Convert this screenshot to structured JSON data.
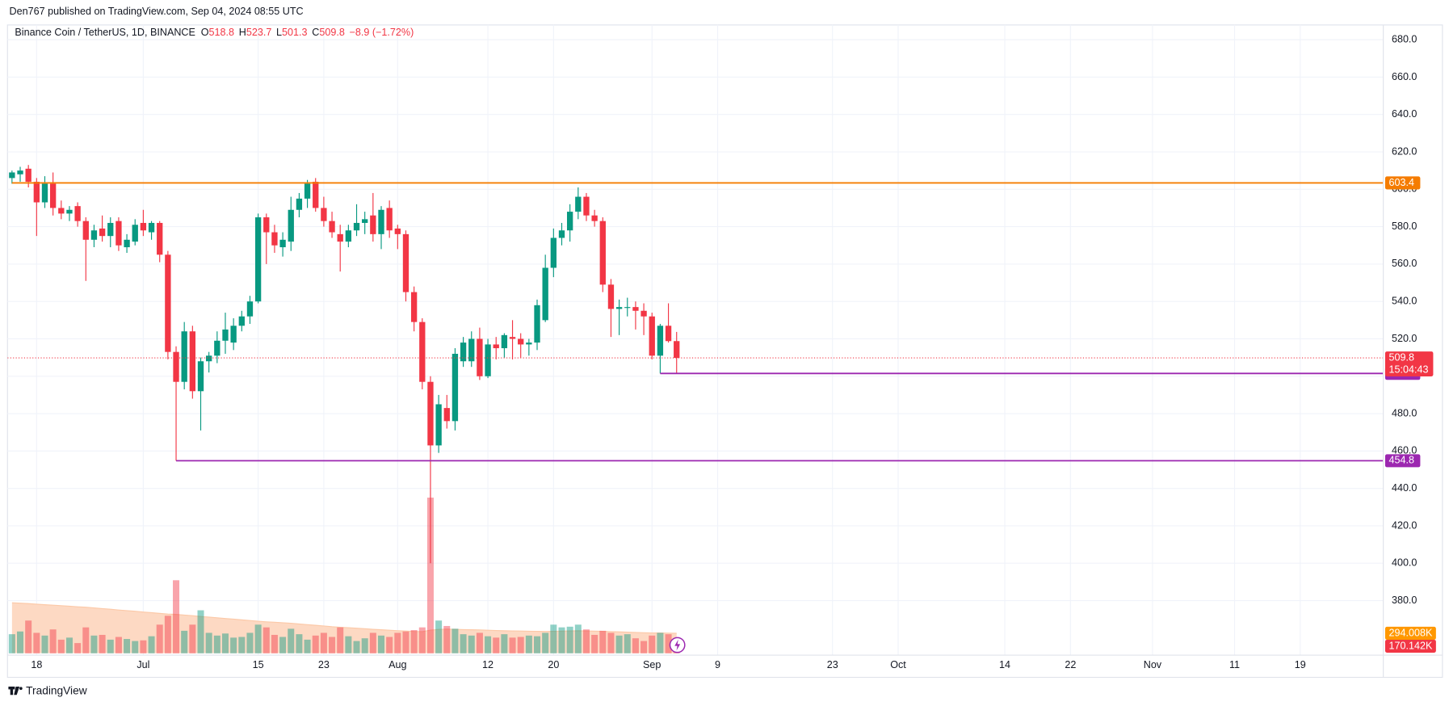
{
  "header": {
    "publisher_line": "Den767 published on TradingView.com, Sep 04, 2024 08:55 UTC"
  },
  "footer": {
    "brand": "TradingView"
  },
  "chart_data": {
    "type": "candlestick",
    "symbol": "Binance Coin / TetherUS, 1D, BINANCE",
    "legend_keys": [
      "O",
      "H",
      "L",
      "C"
    ],
    "change_label": "−8.9 (−1.72%)",
    "countdown": "15:04:43",
    "up_color": "#089981",
    "down_color": "#f23645",
    "grid": true,
    "x": [
      "2024-06-15",
      "2024-06-16",
      "2024-06-17",
      "2024-06-18",
      "2024-06-19",
      "2024-06-20",
      "2024-06-21",
      "2024-06-22",
      "2024-06-23",
      "2024-06-24",
      "2024-06-25",
      "2024-06-26",
      "2024-06-27",
      "2024-06-28",
      "2024-06-29",
      "2024-06-30",
      "2024-07-01",
      "2024-07-02",
      "2024-07-03",
      "2024-07-04",
      "2024-07-05",
      "2024-07-06",
      "2024-07-07",
      "2024-07-08",
      "2024-07-09",
      "2024-07-10",
      "2024-07-11",
      "2024-07-12",
      "2024-07-13",
      "2024-07-14",
      "2024-07-15",
      "2024-07-16",
      "2024-07-17",
      "2024-07-18",
      "2024-07-19",
      "2024-07-20",
      "2024-07-21",
      "2024-07-22",
      "2024-07-23",
      "2024-07-24",
      "2024-07-25",
      "2024-07-26",
      "2024-07-27",
      "2024-07-28",
      "2024-07-29",
      "2024-07-30",
      "2024-07-31",
      "2024-08-01",
      "2024-08-02",
      "2024-08-03",
      "2024-08-04",
      "2024-08-05",
      "2024-08-06",
      "2024-08-07",
      "2024-08-08",
      "2024-08-09",
      "2024-08-10",
      "2024-08-11",
      "2024-08-12",
      "2024-08-13",
      "2024-08-14",
      "2024-08-15",
      "2024-08-16",
      "2024-08-17",
      "2024-08-18",
      "2024-08-19",
      "2024-08-20",
      "2024-08-21",
      "2024-08-22",
      "2024-08-23",
      "2024-08-24",
      "2024-08-25",
      "2024-08-26",
      "2024-08-27",
      "2024-08-28",
      "2024-08-29",
      "2024-08-30",
      "2024-08-31",
      "2024-09-01",
      "2024-09-02",
      "2024-09-03",
      "2024-09-04"
    ],
    "open": [
      606,
      608,
      611,
      604,
      593,
      603,
      590,
      587,
      591,
      583,
      573,
      579,
      575,
      583,
      569,
      572,
      582,
      577,
      582,
      565,
      513,
      497,
      524,
      492,
      508,
      511,
      519,
      518,
      527,
      532,
      540,
      585,
      577,
      569,
      572,
      589,
      595,
      604,
      590,
      583,
      576,
      572,
      578,
      582,
      586,
      576,
      590,
      579,
      576,
      545,
      529,
      497,
      463,
      483,
      476,
      508,
      508,
      520,
      500,
      517,
      515,
      521,
      520,
      517,
      518,
      530,
      558,
      574,
      578,
      588,
      596,
      586,
      583,
      549,
      536,
      537,
      537,
      535,
      532,
      511,
      527,
      518.8
    ],
    "high": [
      610,
      612,
      613,
      606,
      607,
      609,
      594,
      591,
      593,
      585,
      581,
      586,
      585,
      585,
      576,
      584,
      589,
      583,
      583,
      567,
      516,
      529,
      527,
      510,
      513,
      524,
      534,
      531,
      535,
      543,
      587,
      587,
      581,
      577,
      596,
      598,
      605,
      606,
      596,
      588,
      581,
      581,
      592,
      588,
      598,
      591,
      594,
      581,
      578,
      548,
      531,
      500,
      490,
      490,
      515,
      521,
      524,
      526,
      520,
      521,
      523,
      530,
      523,
      520,
      541,
      565,
      579,
      582,
      592,
      601,
      598,
      589,
      585,
      552,
      541,
      542,
      540,
      539,
      534,
      528,
      539,
      523.7
    ],
    "low": [
      603,
      604,
      601,
      575,
      590,
      586,
      584,
      583,
      580,
      551,
      569,
      572,
      569,
      567,
      566,
      570,
      575,
      573,
      561,
      509,
      454.8,
      493,
      488,
      471,
      502,
      507,
      512,
      514,
      524,
      528,
      539,
      560,
      566,
      564,
      567,
      585,
      590,
      588,
      580,
      574,
      556,
      569,
      575,
      576,
      572,
      568,
      574,
      568,
      540,
      524,
      493,
      400,
      459,
      472,
      471,
      505,
      505,
      498,
      499,
      509,
      510,
      509,
      510,
      511,
      514,
      529,
      553,
      570,
      572,
      584,
      583,
      580,
      545,
      521,
      522,
      532,
      525,
      522,
      509,
      501.5,
      518,
      501.3
    ],
    "close": [
      609,
      610,
      604,
      593,
      603,
      590,
      587,
      589,
      583,
      573,
      578,
      575,
      582,
      570,
      573,
      581,
      578,
      582,
      565,
      513,
      497,
      524,
      492,
      508,
      511,
      519,
      525,
      527,
      532,
      540,
      585,
      577,
      570,
      573,
      589,
      595,
      603,
      590,
      583,
      577,
      572,
      578,
      582,
      584,
      576,
      589,
      578,
      576,
      545,
      529,
      497,
      463,
      485,
      476,
      512,
      518,
      520,
      500,
      517,
      515,
      522,
      520,
      517,
      518,
      538,
      558,
      574,
      578,
      588,
      596,
      586,
      583,
      549,
      536,
      537,
      537,
      535,
      532,
      511,
      527,
      518.8,
      509.8
    ],
    "ylim": [
      351.8,
      686.4
    ],
    "yticks": [
      {
        "value": 380,
        "label": "380.0"
      },
      {
        "value": 400,
        "label": "400.0"
      },
      {
        "value": 420,
        "label": "420.0"
      },
      {
        "value": 440,
        "label": "440.0"
      },
      {
        "value": 460,
        "label": "460.0"
      },
      {
        "value": 480,
        "label": "480.0"
      },
      {
        "value": 500,
        "label": "500.0"
      },
      {
        "value": 520,
        "label": "520.0"
      },
      {
        "value": 540,
        "label": "540.0"
      },
      {
        "value": 560,
        "label": "560.0"
      },
      {
        "value": 580,
        "label": "580.0"
      },
      {
        "value": 600,
        "label": "600.0"
      },
      {
        "value": 620,
        "label": "620.0"
      },
      {
        "value": 640,
        "label": "640.0"
      },
      {
        "value": 660,
        "label": "660.0"
      },
      {
        "value": 680,
        "label": "680.0"
      }
    ],
    "xlim": [
      "2024-06-14",
      "2024-11-28"
    ],
    "xticks": [
      {
        "value": "2024-06-18",
        "label": "18"
      },
      {
        "value": "2024-07-01",
        "label": "Jul"
      },
      {
        "value": "2024-07-15",
        "label": "15"
      },
      {
        "value": "2024-07-23",
        "label": "23"
      },
      {
        "value": "2024-08-01",
        "label": "Aug"
      },
      {
        "value": "2024-08-12",
        "label": "12"
      },
      {
        "value": "2024-08-20",
        "label": "20"
      },
      {
        "value": "2024-09-01",
        "label": "Sep"
      },
      {
        "value": "2024-09-09",
        "label": "9"
      },
      {
        "value": "2024-09-23",
        "label": "23"
      },
      {
        "value": "2024-10-01",
        "label": "Oct"
      },
      {
        "value": "2024-10-14",
        "label": "14"
      },
      {
        "value": "2024-10-22",
        "label": "22"
      },
      {
        "value": "2024-11-01",
        "label": "Nov"
      },
      {
        "value": "2024-11-11",
        "label": "11"
      },
      {
        "value": "2024-11-19",
        "label": "19"
      }
    ],
    "levels": [
      {
        "value": 603.4,
        "color": "#f57c00",
        "start": "2024-06-15"
      },
      {
        "value": 501.5,
        "color": "#9c27b0",
        "start": "2024-09-02"
      },
      {
        "value": 454.8,
        "color": "#9c27b0",
        "start": "2024-07-05"
      }
    ],
    "volume": {
      "ylim": [
        0,
        2300000
      ],
      "last_label": "170.142K",
      "values": [
        280000,
        320000,
        480000,
        300000,
        260000,
        350000,
        200000,
        230000,
        150000,
        380000,
        260000,
        270000,
        200000,
        240000,
        210000,
        180000,
        190000,
        250000,
        420000,
        550000,
        1070000,
        330000,
        420000,
        630000,
        300000,
        260000,
        290000,
        230000,
        240000,
        300000,
        420000,
        380000,
        270000,
        240000,
        360000,
        280000,
        200000,
        260000,
        300000,
        240000,
        380000,
        250000,
        180000,
        220000,
        300000,
        260000,
        240000,
        300000,
        320000,
        340000,
        380000,
        2280000,
        480000,
        400000,
        360000,
        280000,
        260000,
        300000,
        250000,
        230000,
        280000,
        230000,
        240000,
        260000,
        250000,
        300000,
        420000,
        380000,
        390000,
        420000,
        350000,
        270000,
        330000,
        300000,
        260000,
        280000,
        220000,
        180000,
        260000,
        300000,
        280000,
        170142
      ]
    },
    "volume_ma": {
      "color": "#ff9800",
      "last_label": "294.008K",
      "values": [
        740000,
        735000,
        728000,
        720000,
        712000,
        705000,
        698000,
        690000,
        682000,
        675000,
        665000,
        655000,
        645000,
        635000,
        625000,
        615000,
        605000,
        595000,
        585000,
        575000,
        570000,
        560000,
        550000,
        540000,
        530000,
        520000,
        510000,
        500000,
        490000,
        480000,
        470000,
        462000,
        455000,
        448000,
        440000,
        430000,
        420000,
        410000,
        400000,
        390000,
        382000,
        375000,
        368000,
        360000,
        352000,
        345000,
        338000,
        332000,
        326000,
        320000,
        318000,
        340000,
        350000,
        355000,
        352000,
        348000,
        345000,
        342000,
        338000,
        334000,
        330000,
        328000,
        326000,
        324000,
        322000,
        320000,
        322000,
        325000,
        328000,
        330000,
        328000,
        325000,
        322000,
        318000,
        314000,
        310000,
        306000,
        302000,
        299000,
        297000,
        295000,
        294008
      ]
    }
  }
}
